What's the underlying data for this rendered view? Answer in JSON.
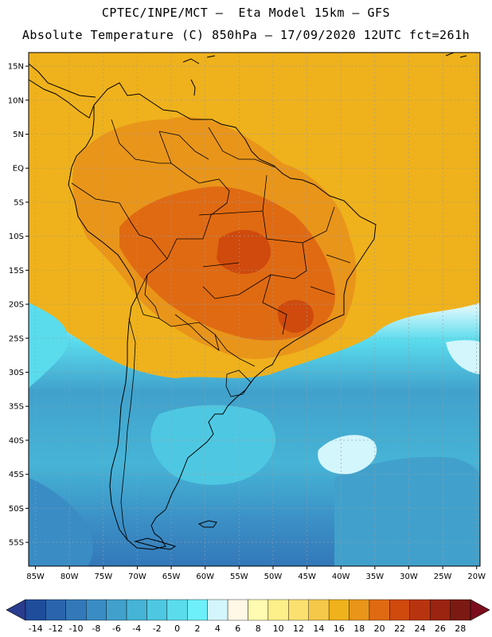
{
  "header": {
    "line1": "CPTEC/INPE/MCT –  Eta Model 15km – GFS",
    "line2": "Absolute Temperature (C) 850hPa – 17/09/2020 12UTC fct=261h"
  },
  "map_data": {
    "variable": "Absolute Temperature",
    "units": "C",
    "level": "850hPa",
    "lon_range": [
      -86,
      -19.5
    ],
    "lat_range": [
      -58.5,
      17
    ],
    "lon_labels": [
      "85W",
      "80W",
      "75W",
      "70W",
      "65W",
      "60W",
      "55W",
      "50W",
      "45W",
      "40W",
      "35W",
      "30W",
      "25W",
      "20W"
    ],
    "lat_labels": [
      "15N",
      "10N",
      "5N",
      "EQ",
      "5S",
      "10S",
      "15S",
      "20S",
      "25S",
      "30S",
      "35S",
      "40S",
      "45S",
      "50S",
      "55S"
    ],
    "colorbar": {
      "labels": [
        "-14",
        "-12",
        "-10",
        "-8",
        "-6",
        "-4",
        "-2",
        "0",
        "2",
        "4",
        "6",
        "8",
        "10",
        "12",
        "14",
        "16",
        "18",
        "20",
        "22",
        "24",
        "26",
        "28"
      ],
      "under_color": "#2a3c8e",
      "over_color": "#7b0d1e",
      "colors": [
        "#1f4d9c",
        "#2a64ad",
        "#3378b9",
        "#3a8dc4",
        "#41a1cc",
        "#46b4d6",
        "#4ec8e2",
        "#5adced",
        "#6ef0fa",
        "#d3f6fc",
        "#fff8e6",
        "#fffbb0",
        "#fdf08a",
        "#fbe070",
        "#f5c84a",
        "#efb21c",
        "#e9951a",
        "#e06a12",
        "#cf4a0c",
        "#b8340e",
        "#9a2410",
        "#7b1a12"
      ]
    },
    "gridline_color": "#9a9a9a",
    "border_color": "#000000"
  }
}
